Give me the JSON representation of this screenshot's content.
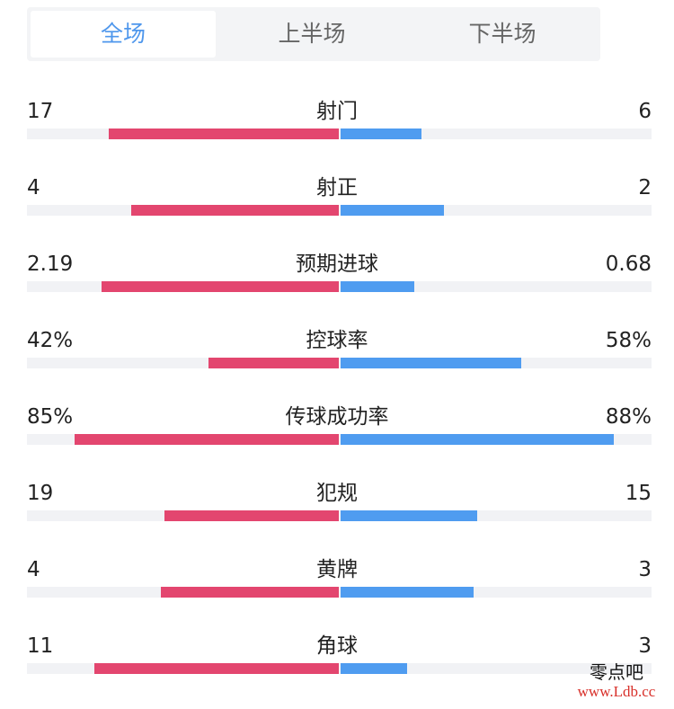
{
  "tabs": [
    {
      "label": "全场",
      "active": true
    },
    {
      "label": "上半场",
      "active": false
    },
    {
      "label": "下半场",
      "active": false
    }
  ],
  "stats": [
    {
      "label": "射门",
      "left": "17",
      "right": "6",
      "left_share": 0.74,
      "right_share": 0.26
    },
    {
      "label": "射正",
      "left": "4",
      "right": "2",
      "left_share": 0.667,
      "right_share": 0.333
    },
    {
      "label": "预期进球",
      "left": "2.19",
      "right": "0.68",
      "left_share": 0.763,
      "right_share": 0.237
    },
    {
      "label": "控球率",
      "left": "42%",
      "right": "58%",
      "left_share": 0.42,
      "right_share": 0.58
    },
    {
      "label": "传球成功率",
      "left": "85%",
      "right": "88%",
      "left_share": 0.85,
      "right_share": 0.88
    },
    {
      "label": "犯规",
      "left": "19",
      "right": "15",
      "left_share": 0.56,
      "right_share": 0.44
    },
    {
      "label": "黄牌",
      "left": "4",
      "right": "3",
      "left_share": 0.571,
      "right_share": 0.429
    },
    {
      "label": "角球",
      "left": "11",
      "right": "3",
      "left_share": 0.786,
      "right_share": 0.214
    }
  ],
  "watermark": {
    "name": "零点吧",
    "url": "www.Ldb.cc"
  },
  "colors": {
    "home": "#e3466f",
    "away": "#4f9cf0",
    "accent": "#4f97ec",
    "track": "#f1f2f5"
  }
}
